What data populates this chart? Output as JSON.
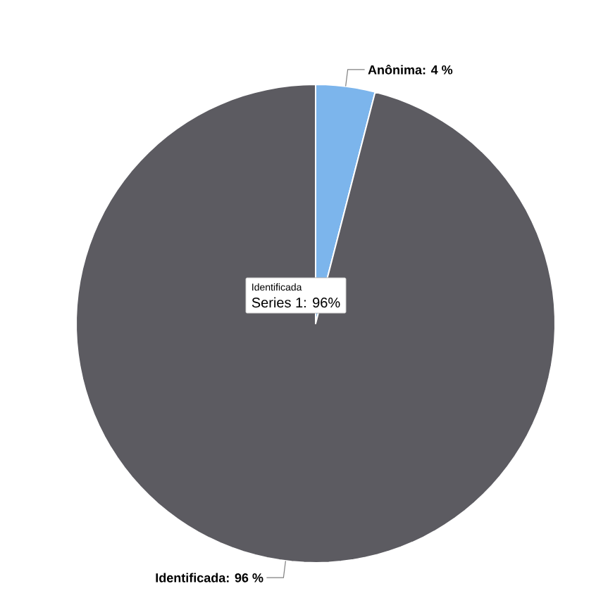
{
  "chart_data": {
    "type": "pie",
    "categories": [
      "Anônima",
      "Identificada"
    ],
    "values": [
      4,
      96
    ],
    "value_labels": [
      ": 4 %",
      ": 96 %"
    ],
    "colors": [
      "#7cb5ec",
      "#5c5b61"
    ],
    "annotations": [
      "Identificada",
      "Series 1: 96%"
    ]
  }
}
